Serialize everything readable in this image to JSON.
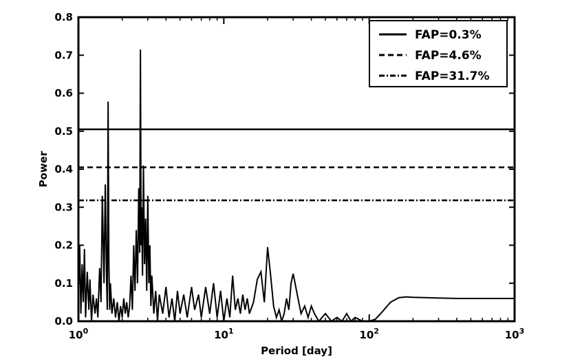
{
  "chart_data": {
    "type": "line",
    "title": "",
    "xlabel": "Period [day]",
    "ylabel": "Power",
    "xscale": "log",
    "xlim": [
      1,
      1000
    ],
    "ylim": [
      0,
      0.8
    ],
    "x_ticks": [
      {
        "value": 1,
        "base": "10",
        "exp": "0"
      },
      {
        "value": 10,
        "base": "10",
        "exp": "1"
      },
      {
        "value": 100,
        "base": "10",
        "exp": "2"
      },
      {
        "value": 1000,
        "base": "10",
        "exp": "3"
      }
    ],
    "y_ticks": [
      {
        "value": 0.0,
        "label": "0.0"
      },
      {
        "value": 0.1,
        "label": "0.1"
      },
      {
        "value": 0.2,
        "label": "0.2"
      },
      {
        "value": 0.3,
        "label": "0.3"
      },
      {
        "value": 0.4,
        "label": "0.4"
      },
      {
        "value": 0.5,
        "label": "0.5"
      },
      {
        "value": 0.6,
        "label": "0.6"
      },
      {
        "value": 0.7,
        "label": "0.7"
      },
      {
        "value": 0.8,
        "label": "0.8"
      }
    ],
    "grid": false,
    "legend_position": "top-right",
    "thresholds": [
      {
        "name": "FAP=0.3%",
        "value": 0.505,
        "style": "solid"
      },
      {
        "name": "FAP=4.6%",
        "value": 0.405,
        "style": "dashed"
      },
      {
        "name": "FAP=31.7%",
        "value": 0.318,
        "style": "dashdot"
      }
    ],
    "series": [
      {
        "x": [
          1.0,
          1.02,
          1.04,
          1.06,
          1.08,
          1.1,
          1.12,
          1.15,
          1.18,
          1.2,
          1.23,
          1.26,
          1.3,
          1.33,
          1.36,
          1.4,
          1.43,
          1.46,
          1.5,
          1.53,
          1.56,
          1.58,
          1.6,
          1.62,
          1.64,
          1.66,
          1.7,
          1.75,
          1.8,
          1.85,
          1.9,
          1.95,
          2.0,
          2.05,
          2.1,
          2.15,
          2.2,
          2.25,
          2.3,
          2.35,
          2.4,
          2.45,
          2.5,
          2.55,
          2.6,
          2.64,
          2.67,
          2.7,
          2.72,
          2.76,
          2.8,
          2.85,
          2.9,
          2.95,
          3.0,
          3.05,
          3.1,
          3.15,
          3.2,
          3.3,
          3.4,
          3.5,
          3.6,
          3.8,
          4.0,
          4.2,
          4.4,
          4.6,
          4.8,
          5.0,
          5.3,
          5.6,
          6.0,
          6.3,
          6.7,
          7.0,
          7.5,
          8.0,
          8.5,
          9.0,
          9.5,
          10.0,
          10.5,
          11.0,
          11.5,
          12.0,
          12.5,
          13.0,
          13.5,
          14.0,
          14.5,
          15.0,
          16.0,
          17.0,
          18.0,
          19.0,
          20.0,
          21.0,
          22.0,
          23.0,
          24.0,
          25.0,
          26.0,
          27.0,
          28.0,
          29.0,
          30.0,
          32.0,
          34.0,
          36.0,
          38.0,
          40.0,
          42.0,
          45.0,
          50.0,
          55.0,
          60.0,
          65.0,
          70.0,
          75.0,
          80.0,
          90.0,
          100.0,
          110.0,
          120.0,
          140.0,
          160.0,
          180.0,
          200.0,
          250.0,
          300.0,
          400.0,
          500.0,
          700.0,
          1000.0
        ],
        "y": [
          0.05,
          0.2,
          0.02,
          0.15,
          0.05,
          0.19,
          0.01,
          0.13,
          0.03,
          0.11,
          0.0,
          0.07,
          0.02,
          0.06,
          0.01,
          0.14,
          0.05,
          0.33,
          0.1,
          0.36,
          0.12,
          0.03,
          0.578,
          0.15,
          0.03,
          0.1,
          0.02,
          0.06,
          0.01,
          0.05,
          0.0,
          0.04,
          0.01,
          0.06,
          0.02,
          0.05,
          0.01,
          0.04,
          0.12,
          0.03,
          0.2,
          0.08,
          0.24,
          0.1,
          0.35,
          0.18,
          0.715,
          0.2,
          0.3,
          0.12,
          0.41,
          0.15,
          0.27,
          0.08,
          0.33,
          0.1,
          0.2,
          0.04,
          0.12,
          0.02,
          0.08,
          0.0,
          0.07,
          0.02,
          0.09,
          0.01,
          0.06,
          0.0,
          0.08,
          0.02,
          0.07,
          0.01,
          0.09,
          0.03,
          0.07,
          0.01,
          0.09,
          0.02,
          0.1,
          0.01,
          0.08,
          0.0,
          0.06,
          0.01,
          0.12,
          0.03,
          0.06,
          0.02,
          0.07,
          0.03,
          0.06,
          0.02,
          0.05,
          0.11,
          0.13,
          0.05,
          0.195,
          0.12,
          0.04,
          0.01,
          0.03,
          0.0,
          0.02,
          0.06,
          0.03,
          0.1,
          0.125,
          0.07,
          0.02,
          0.04,
          0.01,
          0.04,
          0.02,
          0.0,
          0.02,
          0.0,
          0.01,
          0.0,
          0.02,
          0.0,
          0.01,
          0.0,
          0.0,
          0.005,
          0.02,
          0.05,
          0.062,
          0.064,
          0.063,
          0.062,
          0.061,
          0.06,
          0.06,
          0.06,
          0.06
        ]
      }
    ]
  }
}
